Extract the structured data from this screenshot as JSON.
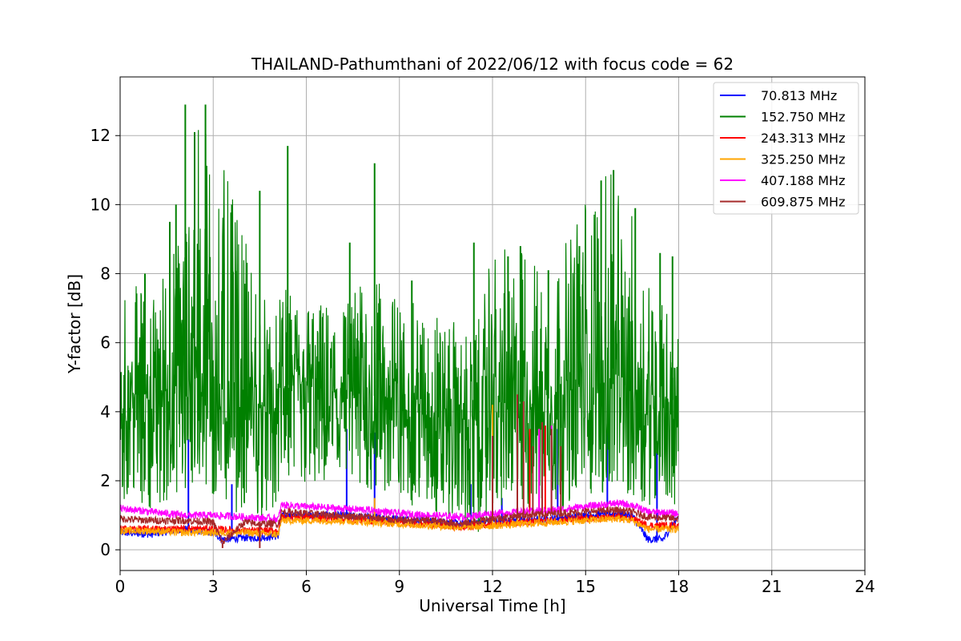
{
  "chart_data": {
    "type": "line",
    "title": "THAILAND-Pathumthani of 2022/06/12 with focus code = 62",
    "xlabel": "Universal Time [h]",
    "ylabel": "Y-factor [dB]",
    "xlim": [
      0,
      24
    ],
    "ylim": [
      -0.6,
      13.7
    ],
    "x_ticks": [
      "0",
      "3",
      "6",
      "9",
      "12",
      "15",
      "18",
      "21",
      "24"
    ],
    "y_ticks": [
      "0",
      "2",
      "4",
      "6",
      "8",
      "10",
      "12"
    ],
    "grid": true,
    "legend_position": "top-right",
    "series": [
      {
        "name": " 70.813 MHz",
        "color": "#0000ff",
        "x": [
          0,
          1,
          2,
          3,
          3.3,
          4,
          4.5,
          5.1,
          5.2,
          6,
          7,
          8,
          9,
          10,
          11,
          12,
          13,
          14,
          15,
          16,
          16.5,
          17,
          17.5,
          18
        ],
        "y": [
          0.5,
          0.45,
          0.6,
          0.5,
          0.3,
          0.35,
          0.35,
          0.4,
          1.0,
          1.0,
          1.0,
          0.95,
          0.9,
          0.85,
          0.75,
          0.85,
          0.85,
          0.9,
          1.0,
          1.05,
          1.0,
          0.3,
          0.3,
          1.0
        ],
        "spikes": [
          [
            2.2,
            3.2
          ],
          [
            3.6,
            1.9
          ],
          [
            7.3,
            3.5
          ],
          [
            8.2,
            3.4
          ],
          [
            11.3,
            1.9
          ],
          [
            12.3,
            1.5
          ],
          [
            13.5,
            2.5
          ],
          [
            14.1,
            3.5
          ],
          [
            15.7,
            3.4
          ],
          [
            17.3,
            3.0
          ]
        ]
      },
      {
        "name": "152.750 MHz",
        "color": "#008000",
        "x": [
          0,
          1,
          2,
          2.5,
          3,
          4,
          5,
          5.2,
          6,
          7,
          8,
          9,
          10,
          11,
          11.4,
          12,
          13,
          14,
          15,
          16,
          17,
          18
        ],
        "y": [
          4.5,
          4.5,
          4.8,
          5.0,
          4.8,
          4.2,
          4.0,
          4.8,
          4.7,
          4.5,
          4.5,
          4.3,
          4.0,
          3.8,
          3.6,
          4.2,
          4.3,
          4.4,
          4.8,
          4.8,
          4.5,
          4.3
        ],
        "y_min": [
          1.5,
          1.2,
          1.4,
          1.6,
          1.3,
          1.0,
          0.9,
          1.8,
          1.7,
          1.6,
          1.6,
          1.4,
          1.0,
          0.9,
          0.0,
          1.2,
          1.0,
          1.1,
          1.5,
          1.6,
          1.3,
          1.2
        ],
        "y_max": [
          8.0,
          7.4,
          9.5,
          12.9,
          12.2,
          9.0,
          6.7,
          7.6,
          7.3,
          7.1,
          8.0,
          7.3,
          7.0,
          6.5,
          6.0,
          8.7,
          8.8,
          8.1,
          10.5,
          11.0,
          8.5,
          6.2
        ],
        "spikes": [
          [
            0.8,
            8.0
          ],
          [
            1.6,
            9.5
          ],
          [
            1.8,
            10.0
          ],
          [
            2.1,
            12.9
          ],
          [
            2.4,
            12.1
          ],
          [
            2.75,
            12.9
          ],
          [
            3.6,
            10.0
          ],
          [
            4.5,
            10.4
          ],
          [
            5.4,
            11.7
          ],
          [
            7.4,
            8.9
          ],
          [
            8.2,
            11.2
          ],
          [
            9.4,
            7.8
          ],
          [
            11.4,
            8.9
          ],
          [
            12.5,
            8.5
          ],
          [
            12.9,
            8.8
          ],
          [
            13.8,
            8.1
          ],
          [
            14.8,
            8.8
          ],
          [
            15.5,
            10.7
          ],
          [
            15.9,
            11.0
          ],
          [
            16.6,
            9.9
          ],
          [
            17.4,
            8.6
          ],
          [
            17.8,
            8.5
          ]
        ]
      },
      {
        "name": "243.313 MHz",
        "color": "#ff0000",
        "x": [
          0,
          1,
          2,
          3,
          4,
          5,
          5.1,
          5.2,
          6,
          7,
          8,
          9,
          10,
          11,
          12,
          13,
          14,
          15,
          16,
          16.5,
          17,
          18
        ],
        "y": [
          0.6,
          0.6,
          0.6,
          0.6,
          0.55,
          0.55,
          0.55,
          0.95,
          0.95,
          0.9,
          0.85,
          0.8,
          0.75,
          0.65,
          0.75,
          0.8,
          0.85,
          0.9,
          0.95,
          0.9,
          0.7,
          0.7
        ],
        "spikes": [
          [
            12.8,
            4.4
          ],
          [
            13.2,
            3.5
          ],
          [
            13.7,
            3.6
          ]
        ]
      },
      {
        "name": "325.250 MHz",
        "color": "#ffa500",
        "x": [
          0,
          1,
          2,
          3,
          4,
          5,
          5.1,
          5.2,
          6,
          7,
          8,
          9,
          10,
          11,
          12,
          13,
          14,
          15,
          16,
          16.5,
          17,
          18
        ],
        "y": [
          0.55,
          0.55,
          0.5,
          0.5,
          0.5,
          0.45,
          0.45,
          0.85,
          0.85,
          0.85,
          0.8,
          0.75,
          0.7,
          0.65,
          0.7,
          0.75,
          0.8,
          0.85,
          0.9,
          0.85,
          0.6,
          0.6
        ],
        "spikes": [
          [
            8.2,
            1.5
          ],
          [
            12.0,
            4.2
          ],
          [
            12.8,
            4.5
          ],
          [
            13.5,
            3.5
          ]
        ]
      },
      {
        "name": "407.188 MHz",
        "color": "#ff00ff",
        "x": [
          0,
          1,
          2,
          3,
          4,
          5,
          5.1,
          5.2,
          6,
          7,
          8,
          9,
          10,
          11,
          12,
          13,
          14,
          15,
          16,
          16.5,
          17,
          18
        ],
        "y": [
          1.2,
          1.1,
          1.0,
          1.0,
          0.95,
          0.9,
          0.9,
          1.3,
          1.25,
          1.2,
          1.15,
          1.05,
          1.0,
          0.95,
          1.05,
          1.1,
          1.15,
          1.25,
          1.35,
          1.3,
          1.1,
          1.05
        ],
        "spikes": [
          [
            12.8,
            3.9
          ],
          [
            13.5,
            3.5
          ],
          [
            13.9,
            3.6
          ]
        ]
      },
      {
        "name": "609.875 MHz",
        "color": "#a52a2a",
        "x": [
          0,
          1,
          2,
          3,
          3.3,
          4,
          4.5,
          5,
          5.1,
          5.2,
          6,
          7,
          8,
          9,
          10,
          11,
          12,
          13,
          14,
          15,
          16,
          16.5,
          17,
          18
        ],
        "y": [
          0.9,
          0.85,
          0.85,
          0.8,
          0.2,
          0.8,
          0.75,
          0.75,
          0.75,
          1.1,
          1.05,
          1.0,
          0.95,
          0.85,
          0.85,
          0.75,
          0.9,
          1.0,
          1.05,
          1.1,
          1.15,
          1.1,
          0.95,
          0.9
        ],
        "spikes": [
          [
            3.3,
            0.05
          ],
          [
            4.5,
            0.05
          ],
          [
            12.0,
            3.3
          ],
          [
            12.8,
            4.5
          ],
          [
            13.0,
            4.3
          ],
          [
            13.3,
            3.0
          ],
          [
            13.6,
            3.7
          ],
          [
            13.9,
            3.5
          ],
          [
            14.2,
            3.0
          ]
        ]
      }
    ]
  }
}
